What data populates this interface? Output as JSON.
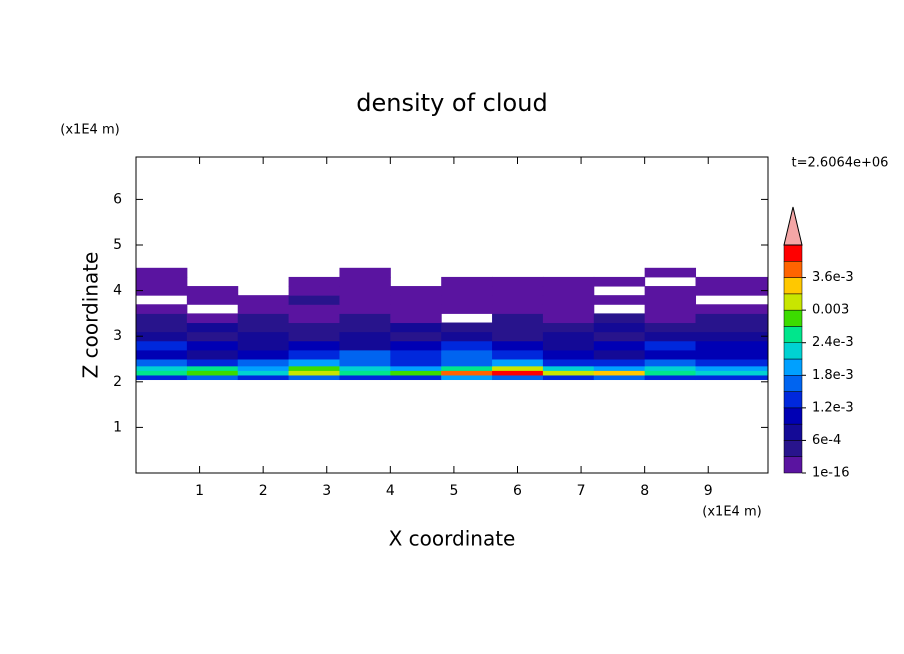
{
  "chart_data": {
    "type": "contour",
    "title": "density of cloud",
    "x_label": "X coordinate",
    "y_label": "Z coordinate",
    "x_unit": "(x1E4 m)",
    "y_unit": "(x1E4 m)",
    "time_label": "t=2.6064e+06",
    "xlim": [
      0,
      9.94
    ],
    "ylim": [
      0,
      6.93
    ],
    "xticks": [
      1,
      2,
      3,
      4,
      5,
      6,
      7,
      8,
      9
    ],
    "yticks": [
      1,
      2,
      3,
      4,
      5,
      6
    ],
    "field": {
      "x_edges": [
        0,
        0.8,
        1.6,
        2.4,
        3.2,
        4.0,
        4.8,
        5.6,
        6.4,
        7.2,
        8.0,
        8.8,
        9.94
      ],
      "z_edges": [
        2.05,
        2.15,
        2.25,
        2.35,
        2.5,
        2.7,
        2.9,
        3.1,
        3.3,
        3.5,
        3.7,
        3.9,
        4.1,
        4.3,
        4.5
      ],
      "values": [
        [
          0.0012,
          0.0015,
          0.0012,
          0.0015,
          0.0012,
          0.0012,
          0.0018,
          0.0015,
          0.0012,
          0.0015,
          0.0012,
          0.0012
        ],
        [
          0.0024,
          0.0027,
          0.0021,
          0.003,
          0.0024,
          0.0027,
          0.0036,
          0.004,
          0.003,
          0.0033,
          0.0024,
          0.0021
        ],
        [
          0.0021,
          0.0024,
          0.0018,
          0.0027,
          0.0021,
          0.0018,
          0.0024,
          0.003,
          0.0021,
          0.0018,
          0.0021,
          0.0018
        ],
        [
          0.0015,
          0.0012,
          0.0015,
          0.0018,
          0.0015,
          0.0012,
          0.0015,
          0.0018,
          0.0012,
          0.0012,
          0.0015,
          0.0012
        ],
        [
          0.0009,
          0.0006,
          0.0009,
          0.0012,
          0.0015,
          0.0012,
          0.0015,
          0.0012,
          0.0009,
          0.0006,
          0.0009,
          0.0009
        ],
        [
          0.0012,
          0.0009,
          0.0006,
          0.0009,
          0.0006,
          0.0009,
          0.0012,
          0.0009,
          0.0006,
          0.0009,
          0.0012,
          0.0009
        ],
        [
          0.0006,
          0.0003,
          0.0006,
          0.0003,
          0.0006,
          0.0003,
          0.0006,
          0.0003,
          0.0006,
          0.0003,
          0.0006,
          0.0006
        ],
        [
          0.0003,
          0.0006,
          0.0003,
          0.0003,
          0.0003,
          0.0006,
          0.0003,
          0.0003,
          0.0003,
          0.0006,
          0.0003,
          0.0003
        ],
        [
          0.0003,
          0.0001,
          0.0003,
          0.0001,
          0.0003,
          0.0001,
          null,
          0.0003,
          0.0001,
          0.0003,
          0.0001,
          0.0003
        ],
        [
          0.0001,
          null,
          0.0001,
          0.0001,
          0.0001,
          0.0001,
          0.0001,
          0.0001,
          0.0001,
          null,
          0.0001,
          0.0001
        ],
        [
          null,
          0.0001,
          0.0001,
          0.0003,
          0.0001,
          0.0001,
          0.0001,
          0.0001,
          0.0001,
          0.0001,
          0.0001,
          null
        ],
        [
          0.0001,
          0.0001,
          null,
          0.0001,
          0.0001,
          0.0001,
          0.0001,
          0.0001,
          0.0001,
          null,
          0.0001,
          0.0001
        ],
        [
          0.0001,
          null,
          null,
          0.0001,
          0.0001,
          null,
          0.0001,
          0.0001,
          0.0001,
          0.0001,
          null,
          0.0001
        ],
        [
          0.0001,
          null,
          null,
          null,
          0.0001,
          null,
          null,
          null,
          null,
          null,
          0.0001,
          null
        ]
      ]
    },
    "color_levels": [
      0,
      0.0003,
      0.0006,
      0.0009,
      0.0012,
      0.0015,
      0.0018,
      0.0021,
      0.0024,
      0.0027,
      0.003,
      0.0033,
      0.0036,
      0.0039,
      0.0042
    ],
    "colors": [
      "#5a14a0",
      "#28148c",
      "#140a96",
      "#0000b4",
      "#0028dc",
      "#0064f0",
      "#00a0ff",
      "#00d2d2",
      "#00e68c",
      "#3cdc00",
      "#c8e600",
      "#ffc800",
      "#ff6400",
      "#ff0000"
    ],
    "over_color": "#f4a6a6",
    "cbar_ticks": [
      1e-16,
      {
        "value": 0.0006,
        "label": "6e-4"
      },
      {
        "value": 0.0012,
        "label": "1.2e-3"
      },
      {
        "value": 0.0018,
        "label": "1.8e-3"
      },
      {
        "value": 0.0024,
        "label": "2.4e-3"
      },
      0.003,
      {
        "value": 0.0036,
        "label": "3.6e-3"
      }
    ]
  }
}
